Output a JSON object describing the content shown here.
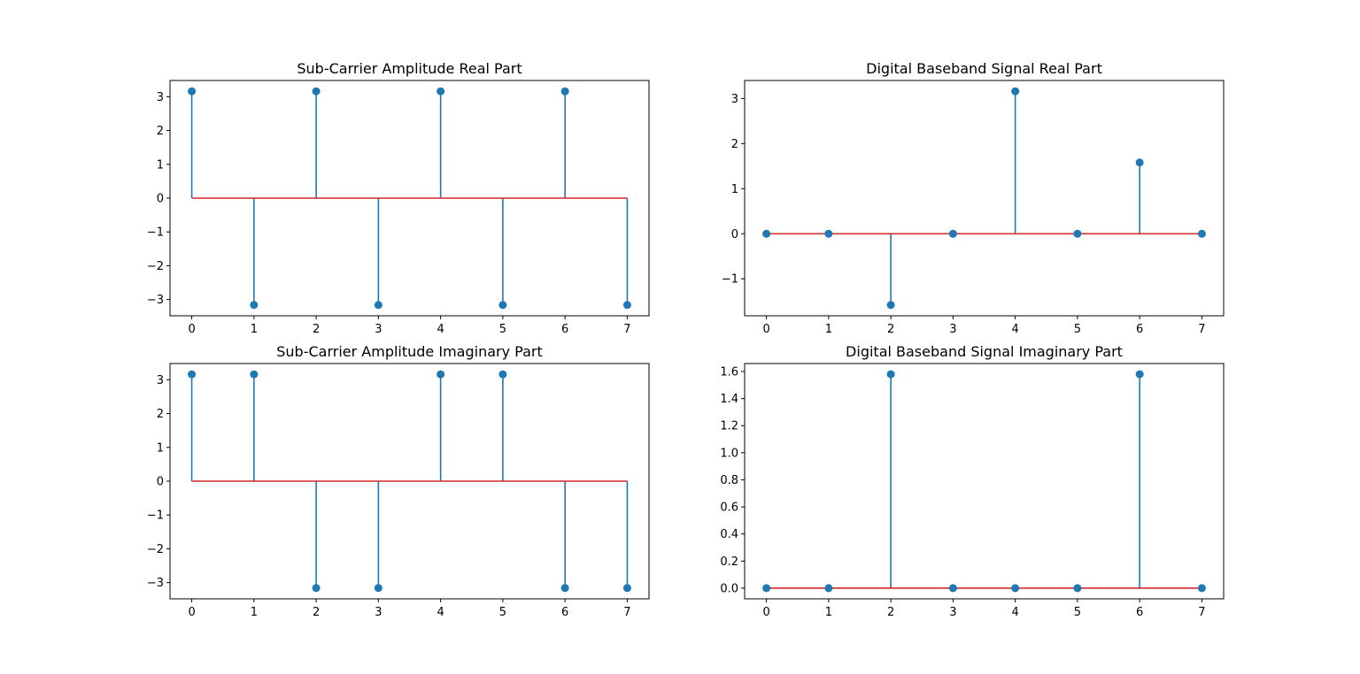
{
  "colors": {
    "stem": "#1f77b4",
    "baseline": "#d62728",
    "axes": "#000000"
  },
  "chart_data": [
    {
      "type": "stem",
      "title": "Sub-Carrier Amplitude Real Part",
      "x": [
        0,
        1,
        2,
        3,
        4,
        5,
        6,
        7
      ],
      "values": [
        3.16,
        -3.16,
        3.16,
        -3.16,
        3.16,
        -3.16,
        3.16,
        -3.16
      ],
      "xlim": [
        -0.35,
        7.35
      ],
      "ylim": [
        -3.48,
        3.48
      ],
      "xticks": [
        0,
        1,
        2,
        3,
        4,
        5,
        6,
        7
      ],
      "yticks": [
        -3,
        -2,
        -1,
        0,
        1,
        2,
        3
      ],
      "baseline": 0,
      "grid": false
    },
    {
      "type": "stem",
      "title": "Digital Baseband Signal Real Part",
      "x": [
        0,
        1,
        2,
        3,
        4,
        5,
        6,
        7
      ],
      "values": [
        0,
        0,
        -1.58,
        0,
        3.16,
        0,
        1.58,
        0
      ],
      "xlim": [
        -0.35,
        7.35
      ],
      "ylim": [
        -1.82,
        3.4
      ],
      "xticks": [
        0,
        1,
        2,
        3,
        4,
        5,
        6,
        7
      ],
      "yticks": [
        -1,
        0,
        1,
        2,
        3
      ],
      "baseline": 0,
      "grid": false
    },
    {
      "type": "stem",
      "title": "Sub-Carrier Amplitude Imaginary Part",
      "x": [
        0,
        1,
        2,
        3,
        4,
        5,
        6,
        7
      ],
      "values": [
        3.16,
        3.16,
        -3.16,
        -3.16,
        3.16,
        3.16,
        -3.16,
        -3.16
      ],
      "xlim": [
        -0.35,
        7.35
      ],
      "ylim": [
        -3.48,
        3.48
      ],
      "xticks": [
        0,
        1,
        2,
        3,
        4,
        5,
        6,
        7
      ],
      "yticks": [
        -3,
        -2,
        -1,
        0,
        1,
        2,
        3
      ],
      "baseline": 0,
      "grid": false
    },
    {
      "type": "stem",
      "title": "Digital Baseband Signal Imaginary Part",
      "x": [
        0,
        1,
        2,
        3,
        4,
        5,
        6,
        7
      ],
      "values": [
        0,
        0,
        1.58,
        0,
        0,
        0,
        1.58,
        0
      ],
      "xlim": [
        -0.35,
        7.35
      ],
      "ylim": [
        -0.079,
        1.659
      ],
      "xticks": [
        0,
        1,
        2,
        3,
        4,
        5,
        6,
        7
      ],
      "yticks": [
        0.0,
        0.2,
        0.4,
        0.6,
        0.8,
        1.0,
        1.2,
        1.4,
        1.6
      ],
      "ytick_labels": [
        "0.0",
        "0.2",
        "0.4",
        "0.6",
        "0.8",
        "1.0",
        "1.2",
        "1.4",
        "1.6"
      ],
      "baseline": 0,
      "grid": false
    }
  ]
}
